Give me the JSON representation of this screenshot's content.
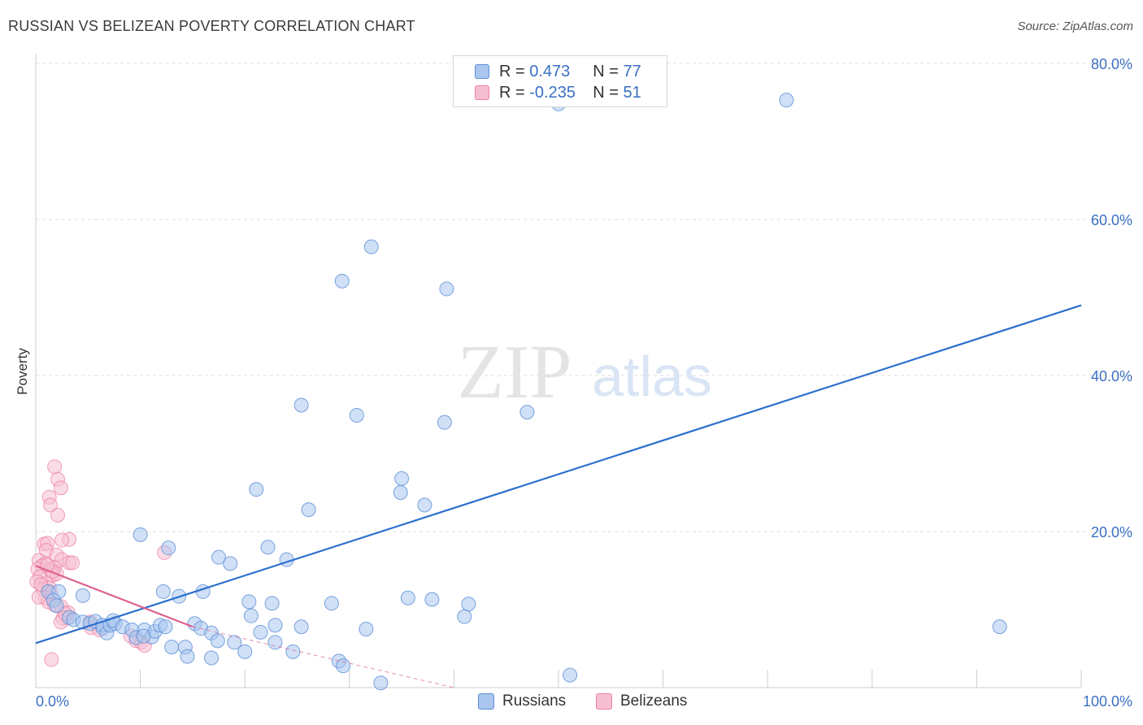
{
  "header": {
    "title": "RUSSIAN VS BELIZEAN POVERTY CORRELATION CHART",
    "source": "Source: ZipAtlas.com"
  },
  "watermark": {
    "zip": "ZIP",
    "atlas": "atlas"
  },
  "legend": {
    "rows": [
      {
        "r_label": "R = ",
        "r_value": "0.473",
        "n_label": "N = ",
        "n_value": "77",
        "color": "#5b8fd6"
      },
      {
        "r_label": "R = ",
        "r_value": "-0.235",
        "n_label": "N = ",
        "n_value": "51",
        "color": "#ee7fa3"
      }
    ]
  },
  "bottom_legend": {
    "russians": "Russians",
    "belizeans": "Belizeans"
  },
  "colors": {
    "blue": "#5b8fd6",
    "blue_fill": "#aac6ee",
    "pink": "#ee7fa3",
    "pink_fill": "#f6bfd1",
    "blue_line": "#2c6fce",
    "pink_line": "#e0608f",
    "tick_label": "#3a6fc4"
  },
  "chart_data": {
    "type": "scatter",
    "title": "RUSSIAN VS BELIZEAN POVERTY CORRELATION CHART",
    "xlabel": "",
    "ylabel": "Poverty",
    "xlim": [
      0,
      100
    ],
    "ylim": [
      0,
      80
    ],
    "x_tick_labels": [
      "0.0%",
      "100.0%"
    ],
    "y_ticks": [
      20,
      40,
      60,
      80
    ],
    "y_tick_labels": [
      "20.0%",
      "40.0%",
      "60.0%",
      "80.0%"
    ],
    "grid": true,
    "series": [
      {
        "name": "Russians",
        "r": 0.473,
        "n": 77,
        "trend": [
          [
            0,
            5.7
          ],
          [
            100,
            49
          ]
        ],
        "points": [
          [
            50,
            74.8
          ],
          [
            71.8,
            75.3
          ],
          [
            32.1,
            56.5
          ],
          [
            29.3,
            52.1
          ],
          [
            39.3,
            51.1
          ],
          [
            25.4,
            36.2
          ],
          [
            30.7,
            34.9
          ],
          [
            39.1,
            34.0
          ],
          [
            47,
            35.3
          ],
          [
            35,
            26.8
          ],
          [
            21.1,
            25.4
          ],
          [
            34.9,
            25.0
          ],
          [
            26.1,
            22.8
          ],
          [
            37.2,
            23.4
          ],
          [
            10,
            19.6
          ],
          [
            12.7,
            17.9
          ],
          [
            22.2,
            18.0
          ],
          [
            17.5,
            16.7
          ],
          [
            18.6,
            15.9
          ],
          [
            24,
            16.4
          ],
          [
            4.5,
            11.8
          ],
          [
            1.2,
            12.3
          ],
          [
            2.2,
            12.3
          ],
          [
            1.7,
            11.2
          ],
          [
            2,
            10.5
          ],
          [
            12.2,
            12.3
          ],
          [
            13.7,
            11.7
          ],
          [
            16,
            12.3
          ],
          [
            20.4,
            11.0
          ],
          [
            22.6,
            10.8
          ],
          [
            28.3,
            10.8
          ],
          [
            35.6,
            11.5
          ],
          [
            37.9,
            11.3
          ],
          [
            41.4,
            10.7
          ],
          [
            20.6,
            9.2
          ],
          [
            3.2,
            9.0
          ],
          [
            3.6,
            8.7
          ],
          [
            4.5,
            8.4
          ],
          [
            5.2,
            8.2
          ],
          [
            5.7,
            8.5
          ],
          [
            6.4,
            7.6
          ],
          [
            6.4,
            8.0
          ],
          [
            6.8,
            7.0
          ],
          [
            7.1,
            8.0
          ],
          [
            7.6,
            8.2
          ],
          [
            7.4,
            8.6
          ],
          [
            8.3,
            7.8
          ],
          [
            9.2,
            7.4
          ],
          [
            9.6,
            6.4
          ],
          [
            10.4,
            7.4
          ],
          [
            11.1,
            6.5
          ],
          [
            11.4,
            7.2
          ],
          [
            11.9,
            8.0
          ],
          [
            12.4,
            7.8
          ],
          [
            15.2,
            8.2
          ],
          [
            15.8,
            7.6
          ],
          [
            16.8,
            7.0
          ],
          [
            17.4,
            6.0
          ],
          [
            19,
            5.8
          ],
          [
            21.5,
            7.1
          ],
          [
            22.9,
            8.0
          ],
          [
            25.4,
            7.8
          ],
          [
            31.6,
            7.5
          ],
          [
            41,
            9.1
          ],
          [
            13,
            5.2
          ],
          [
            14.3,
            5.2
          ],
          [
            14.5,
            4.0
          ],
          [
            16.8,
            3.8
          ],
          [
            20,
            4.6
          ],
          [
            22.9,
            5.8
          ],
          [
            24.6,
            4.6
          ],
          [
            29,
            3.4
          ],
          [
            29.4,
            2.8
          ],
          [
            33,
            0.6
          ],
          [
            51.1,
            1.6
          ],
          [
            92.2,
            7.8
          ],
          [
            10.3,
            6.6
          ]
        ]
      },
      {
        "name": "Belizeans",
        "r": -0.235,
        "n": 51,
        "trend": [
          [
            0,
            15.6
          ],
          [
            15,
            7.8
          ]
        ],
        "trend_dashed": [
          [
            15,
            7.8
          ],
          [
            40,
            0
          ]
        ],
        "points": [
          [
            1.8,
            28.3
          ],
          [
            2.1,
            26.7
          ],
          [
            2.4,
            25.6
          ],
          [
            1.3,
            24.4
          ],
          [
            1.4,
            23.4
          ],
          [
            2.1,
            22.1
          ],
          [
            3.2,
            19.0
          ],
          [
            2.5,
            18.9
          ],
          [
            0.8,
            18.4
          ],
          [
            1.1,
            18.5
          ],
          [
            1.0,
            17.6
          ],
          [
            2.0,
            17.0
          ],
          [
            12.3,
            17.3
          ],
          [
            2.5,
            16.4
          ],
          [
            3.2,
            16.0
          ],
          [
            3.5,
            16.0
          ],
          [
            0.3,
            16.3
          ],
          [
            0.9,
            15.9
          ],
          [
            1.8,
            15.4
          ],
          [
            0.6,
            15.6
          ],
          [
            0.2,
            15.2
          ],
          [
            1.4,
            15.1
          ],
          [
            1.6,
            14.4
          ],
          [
            2.0,
            14.6
          ],
          [
            0.4,
            14.2
          ],
          [
            0.1,
            13.6
          ],
          [
            1.0,
            13.4
          ],
          [
            1.3,
            12.8
          ],
          [
            0.7,
            12.6
          ],
          [
            1.4,
            12.1
          ],
          [
            0.9,
            11.5
          ],
          [
            1.2,
            11.0
          ],
          [
            0.3,
            11.6
          ],
          [
            1.8,
            10.6
          ],
          [
            2.4,
            10.4
          ],
          [
            3.1,
            9.6
          ],
          [
            3.0,
            8.9
          ],
          [
            2.6,
            8.9
          ],
          [
            2.4,
            8.4
          ],
          [
            2.8,
            9.5
          ],
          [
            5.2,
            8.4
          ],
          [
            5.3,
            7.7
          ],
          [
            6.1,
            7.4
          ],
          [
            9.1,
            6.6
          ],
          [
            9.6,
            6.0
          ],
          [
            10.1,
            5.8
          ],
          [
            10.4,
            5.4
          ],
          [
            1.5,
            3.6
          ],
          [
            0.5,
            13.2
          ],
          [
            1.6,
            14.9
          ],
          [
            1.1,
            15.7
          ]
        ]
      }
    ]
  }
}
